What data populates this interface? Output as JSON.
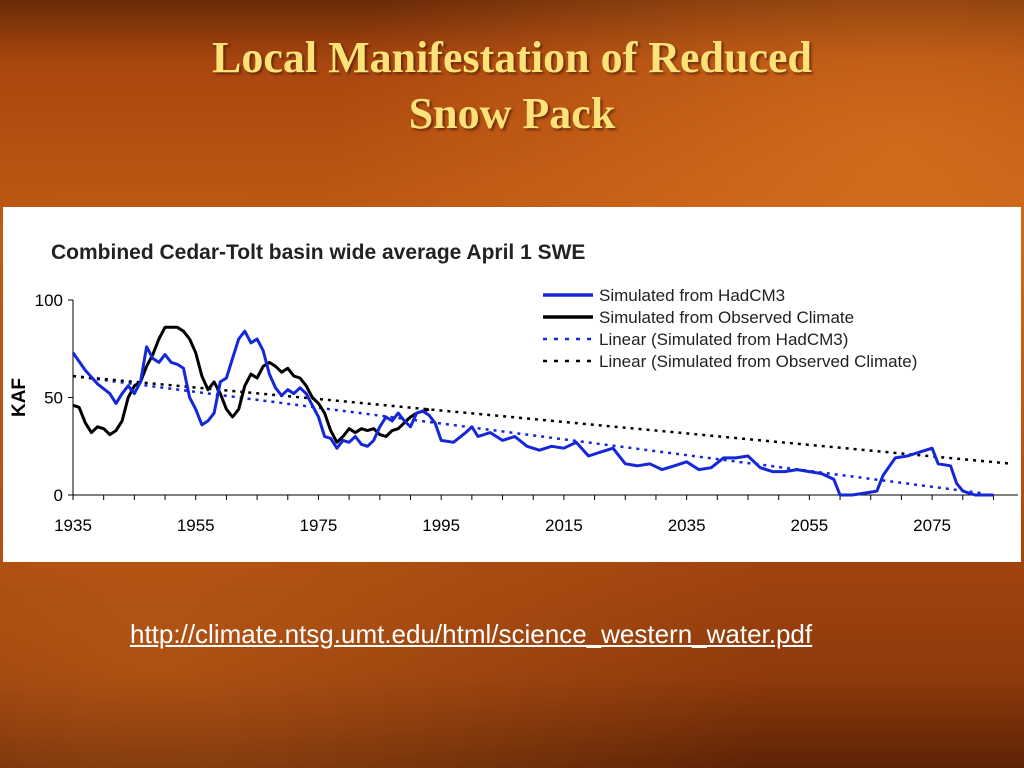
{
  "slide": {
    "title_line1": "Local Manifestation of Reduced",
    "title_line2": "Snow Pack",
    "link_text": "http://climate.ntsg.umt.edu/html/science_western_water.pdf"
  },
  "colors": {
    "background": "#b24d11",
    "title": "#fde27a",
    "hadcm3_series": "#1428d8",
    "observed_series": "#000000"
  },
  "chart_data": {
    "type": "line",
    "title": "Combined Cedar-Tolt basin wide average April 1 SWE",
    "xlabel": "",
    "ylabel": "KAF",
    "xlim": [
      1935,
      2089
    ],
    "ylim": [
      0,
      100
    ],
    "x_ticks": [
      1935,
      1955,
      1975,
      1995,
      2015,
      2035,
      2055,
      2075
    ],
    "y_ticks": [
      0,
      50,
      100
    ],
    "grid": false,
    "legend_position": "top-right",
    "series": [
      {
        "name": "Simulated  from HadCM3",
        "style": "solid",
        "color": "#1428d8",
        "points": [
          [
            1935,
            73
          ],
          [
            1937,
            64
          ],
          [
            1939,
            57
          ],
          [
            1941,
            52
          ],
          [
            1942,
            47
          ],
          [
            1943,
            52
          ],
          [
            1944,
            56
          ],
          [
            1945,
            52
          ],
          [
            1946,
            58
          ],
          [
            1947,
            76
          ],
          [
            1948,
            70
          ],
          [
            1949,
            68
          ],
          [
            1950,
            72
          ],
          [
            1951,
            68
          ],
          [
            1952,
            67
          ],
          [
            1953,
            65
          ],
          [
            1954,
            50
          ],
          [
            1955,
            44
          ],
          [
            1956,
            36
          ],
          [
            1957,
            38
          ],
          [
            1958,
            42
          ],
          [
            1959,
            58
          ],
          [
            1960,
            60
          ],
          [
            1961,
            70
          ],
          [
            1962,
            80
          ],
          [
            1963,
            84
          ],
          [
            1964,
            78
          ],
          [
            1965,
            80
          ],
          [
            1966,
            74
          ],
          [
            1967,
            62
          ],
          [
            1968,
            55
          ],
          [
            1969,
            51
          ],
          [
            1970,
            54
          ],
          [
            1971,
            52
          ],
          [
            1972,
            55
          ],
          [
            1973,
            52
          ],
          [
            1974,
            46
          ],
          [
            1975,
            40
          ],
          [
            1976,
            30
          ],
          [
            1977,
            29
          ],
          [
            1978,
            24
          ],
          [
            1979,
            28
          ],
          [
            1980,
            27
          ],
          [
            1981,
            30
          ],
          [
            1982,
            26
          ],
          [
            1983,
            25
          ],
          [
            1984,
            28
          ],
          [
            1985,
            35
          ],
          [
            1986,
            40
          ],
          [
            1987,
            38
          ],
          [
            1988,
            42
          ],
          [
            1989,
            38
          ],
          [
            1990,
            35
          ],
          [
            1991,
            42
          ],
          [
            1992,
            43
          ],
          [
            1993,
            41
          ],
          [
            1994,
            37
          ],
          [
            1995,
            28
          ],
          [
            1997,
            27
          ],
          [
            1999,
            32
          ],
          [
            2000,
            35
          ],
          [
            2001,
            30
          ],
          [
            2003,
            32
          ],
          [
            2005,
            28
          ],
          [
            2007,
            30
          ],
          [
            2009,
            25
          ],
          [
            2011,
            23
          ],
          [
            2013,
            25
          ],
          [
            2015,
            24
          ],
          [
            2017,
            27
          ],
          [
            2019,
            20
          ],
          [
            2021,
            22
          ],
          [
            2023,
            24
          ],
          [
            2025,
            16
          ],
          [
            2027,
            15
          ],
          [
            2029,
            16
          ],
          [
            2031,
            13
          ],
          [
            2033,
            15
          ],
          [
            2035,
            17
          ],
          [
            2037,
            13
          ],
          [
            2039,
            14
          ],
          [
            2041,
            19
          ],
          [
            2043,
            19
          ],
          [
            2045,
            20
          ],
          [
            2047,
            14
          ],
          [
            2049,
            12
          ],
          [
            2051,
            12
          ],
          [
            2053,
            13
          ],
          [
            2055,
            12
          ],
          [
            2057,
            11
          ],
          [
            2059,
            8
          ],
          [
            2060,
            0
          ],
          [
            2062,
            0
          ],
          [
            2064,
            1
          ],
          [
            2066,
            2
          ],
          [
            2067,
            10
          ],
          [
            2069,
            19
          ],
          [
            2071,
            20
          ],
          [
            2073,
            22
          ],
          [
            2075,
            24
          ],
          [
            2076,
            16
          ],
          [
            2078,
            15
          ],
          [
            2079,
            6
          ],
          [
            2080,
            2
          ],
          [
            2082,
            0
          ],
          [
            2085,
            0
          ]
        ]
      },
      {
        "name": "Simulated from Observed Climate",
        "style": "solid",
        "color": "#000000",
        "points": [
          [
            1935,
            46
          ],
          [
            1936,
            45
          ],
          [
            1937,
            37
          ],
          [
            1938,
            32
          ],
          [
            1939,
            35
          ],
          [
            1940,
            34
          ],
          [
            1941,
            31
          ],
          [
            1942,
            33
          ],
          [
            1943,
            38
          ],
          [
            1944,
            50
          ],
          [
            1945,
            56
          ],
          [
            1946,
            58
          ],
          [
            1947,
            66
          ],
          [
            1948,
            72
          ],
          [
            1949,
            80
          ],
          [
            1950,
            86
          ],
          [
            1951,
            86
          ],
          [
            1952,
            86
          ],
          [
            1953,
            84
          ],
          [
            1954,
            80
          ],
          [
            1955,
            73
          ],
          [
            1956,
            61
          ],
          [
            1957,
            54
          ],
          [
            1958,
            58
          ],
          [
            1959,
            52
          ],
          [
            1960,
            44
          ],
          [
            1961,
            40
          ],
          [
            1962,
            44
          ],
          [
            1963,
            56
          ],
          [
            1964,
            62
          ],
          [
            1965,
            60
          ],
          [
            1966,
            66
          ],
          [
            1967,
            68
          ],
          [
            1968,
            66
          ],
          [
            1969,
            63
          ],
          [
            1970,
            65
          ],
          [
            1971,
            61
          ],
          [
            1972,
            60
          ],
          [
            1973,
            56
          ],
          [
            1974,
            50
          ],
          [
            1975,
            47
          ],
          [
            1976,
            42
          ],
          [
            1977,
            33
          ],
          [
            1978,
            27
          ],
          [
            1979,
            30
          ],
          [
            1980,
            34
          ],
          [
            1981,
            32
          ],
          [
            1982,
            34
          ],
          [
            1983,
            33
          ],
          [
            1984,
            34
          ],
          [
            1985,
            31
          ],
          [
            1986,
            30
          ],
          [
            1987,
            33
          ],
          [
            1988,
            34
          ],
          [
            1989,
            37
          ],
          [
            1990,
            40
          ],
          [
            1991,
            42
          ],
          [
            1992,
            43
          ],
          [
            1993,
            44
          ]
        ]
      },
      {
        "name": "Linear (Simulated  from HadCM3)",
        "style": "dotted",
        "color": "#1428d8",
        "points": [
          [
            1935,
            61
          ],
          [
            2083,
            1
          ]
        ]
      },
      {
        "name": "Linear (Simulated from Observed Climate)",
        "style": "dotted",
        "color": "#000000",
        "points": [
          [
            1935,
            61
          ],
          [
            2088,
            16
          ]
        ]
      }
    ]
  }
}
